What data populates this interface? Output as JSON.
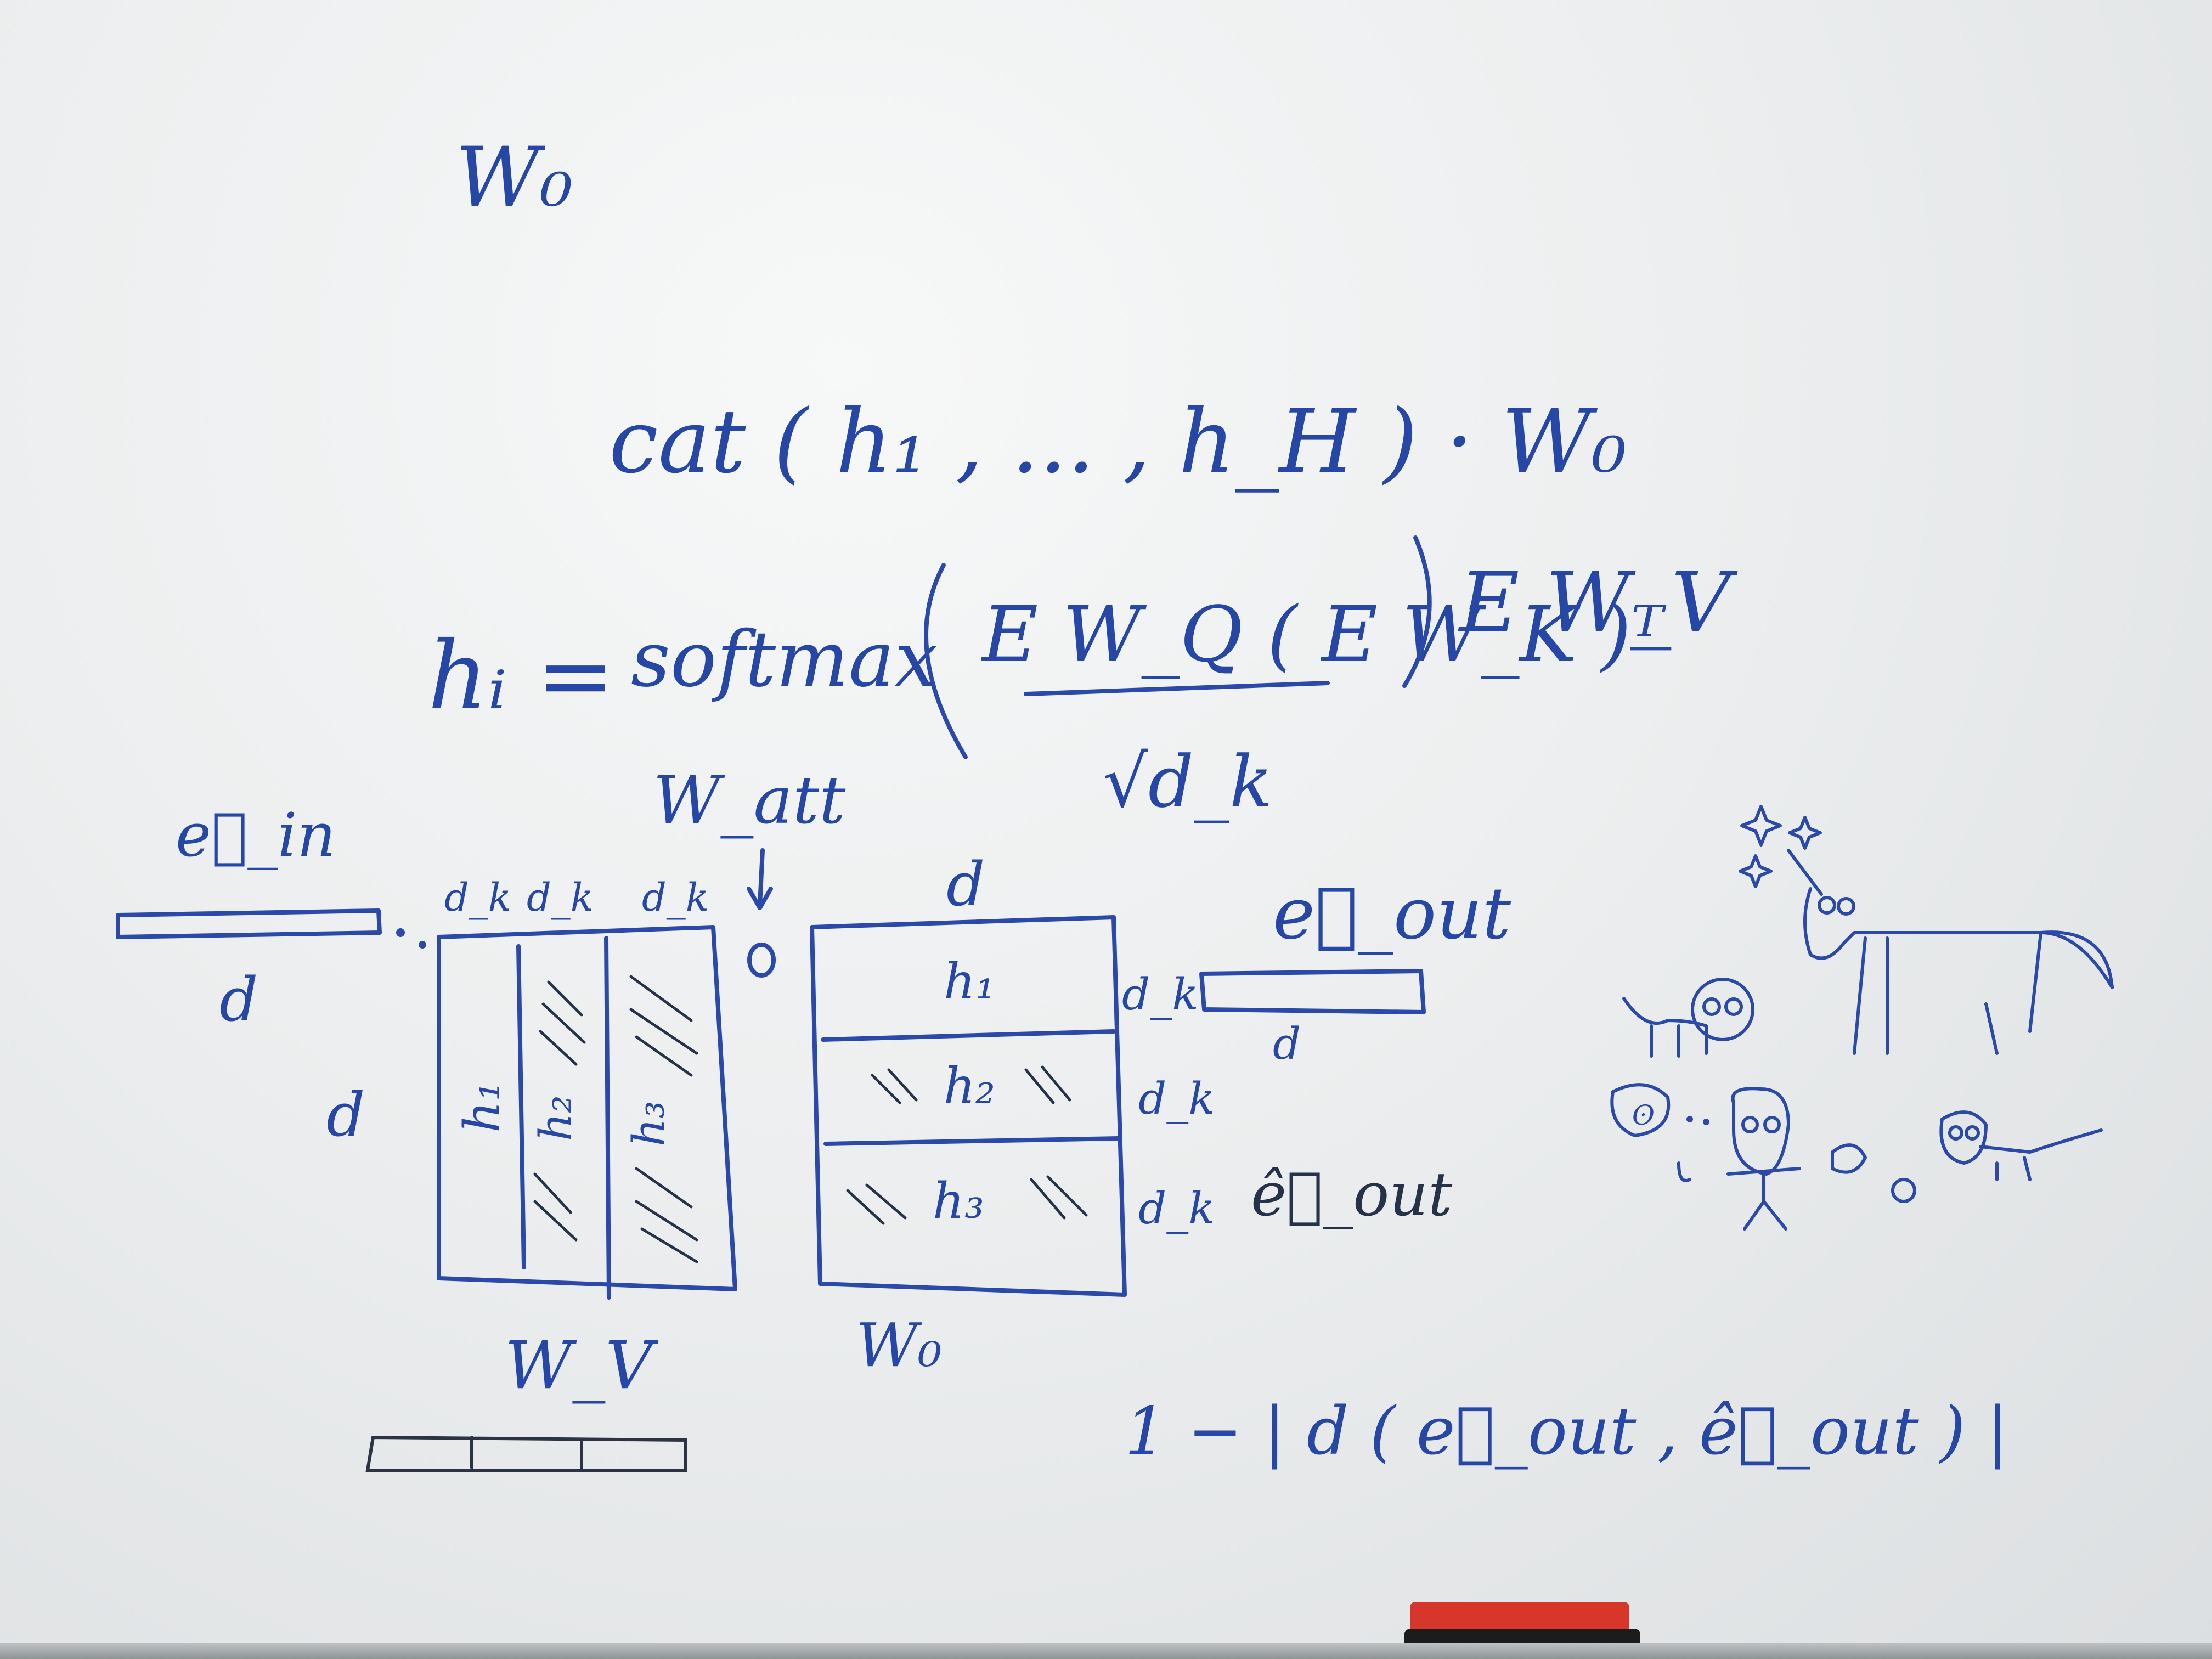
{
  "board": {
    "title_w0": "W₀",
    "concat_formula": "cat ( h₁ , ... , h_H ) · W₀",
    "head_formula": {
      "lhs": "hᵢ =",
      "softmax": "softmax",
      "numerator": "E W_Q ( E W_K )ᵀ",
      "denominator": "√d_k",
      "tail": "E W_V"
    },
    "labels": {
      "e_in": "e⃗_in",
      "d_under_ein": "d",
      "w_att": "W_att",
      "dk_cols": [
        "d_k",
        "d_k",
        "d_k"
      ],
      "d_left": "d",
      "heads_col": [
        "h₁",
        "h₂",
        "h₃"
      ],
      "d_top": "d",
      "heads_row": [
        "h₁",
        "h₂",
        "h₃"
      ],
      "dk_rows": [
        "d_k",
        "d_k",
        "d_k"
      ],
      "e_out": "e⃗_out",
      "d_under_eout": "d",
      "e_out_hat": "ê⃗_out",
      "wv": "W_V",
      "w0": "W₀",
      "loss": "1 − | d ( e⃗_out , ê⃗_out ) |"
    },
    "colors": {
      "ink_blue": "#2a49a8",
      "ink_black": "#26324a",
      "board": "#eceeef",
      "marker_red": "#d7372a"
    },
    "doodles": [
      "unicorn",
      "dog",
      "girl",
      "cat",
      "sparkles"
    ]
  }
}
